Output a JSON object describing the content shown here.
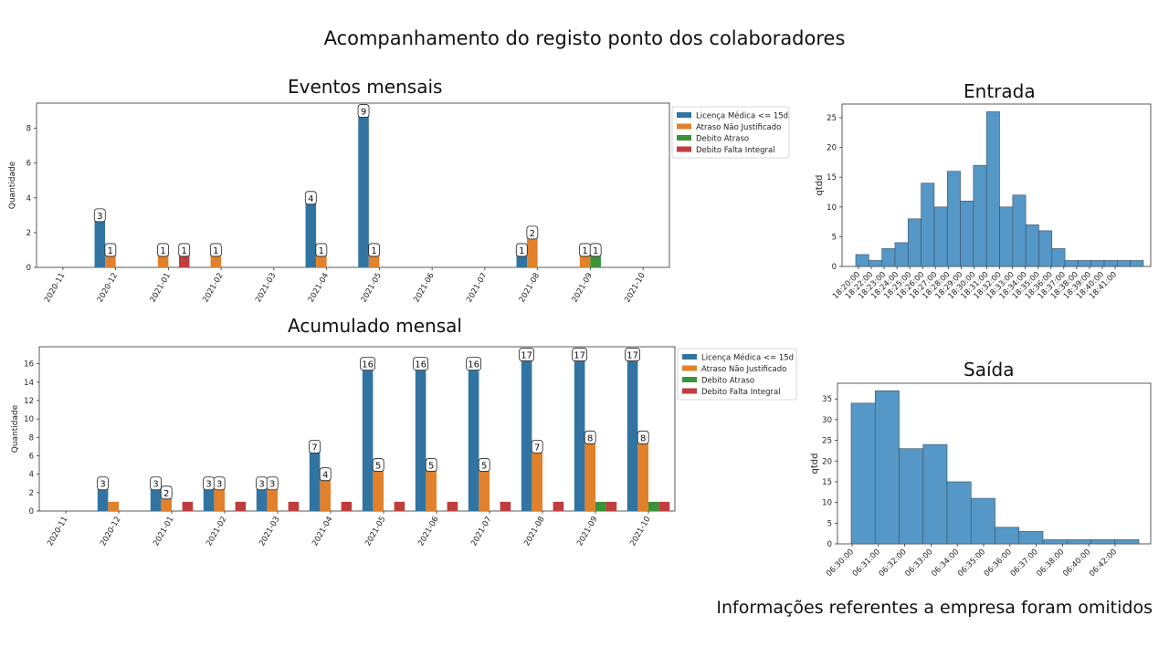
{
  "page": {
    "title": "Acompanhamento do registo ponto dos colaboradores",
    "footnote": "Informações referentes a empresa foram omitidos"
  },
  "colors": {
    "Licença Médica <= 15d": "#3274a1",
    "Atraso Não Justificado": "#e1812c",
    "Debito Atraso": "#3a923a",
    "Debito Falta Integral": "#c03d3e",
    "histogram": "#5597c6"
  },
  "chart_data": [
    {
      "id": "eventos",
      "type": "bar",
      "title": "Eventos mensais",
      "xlabel": "",
      "ylabel": "Quantidade",
      "ylim": [
        0,
        9.45
      ],
      "yticks": [
        0,
        2,
        4,
        6,
        8
      ],
      "legend_position": "top-right",
      "categories": [
        "2020-11",
        "2020-12",
        "2021-01",
        "2021-02",
        "2021-03",
        "2021-04",
        "2021-05",
        "2021-06",
        "2021-07",
        "2021-08",
        "2021-09",
        "2021-10"
      ],
      "series": [
        {
          "name": "Licença Médica <= 15d",
          "values": [
            0,
            3,
            0,
            0,
            0,
            4,
            9,
            0,
            0,
            1,
            0,
            0
          ]
        },
        {
          "name": "Atraso Não Justificado",
          "values": [
            0,
            1,
            1,
            1,
            0,
            1,
            1,
            0,
            0,
            2,
            1,
            0
          ]
        },
        {
          "name": "Debito Atraso",
          "values": [
            0,
            0,
            0,
            0,
            0,
            0,
            0,
            0,
            0,
            0,
            1,
            0
          ]
        },
        {
          "name": "Debito Falta Integral",
          "values": [
            0,
            0,
            1,
            0,
            0,
            0,
            0,
            0,
            0,
            0,
            0,
            0
          ]
        }
      ],
      "data_labels": [
        {
          "category": "2020-12",
          "series": 0,
          "text": "3"
        },
        {
          "category": "2020-12",
          "series": 1,
          "text": "1"
        },
        {
          "category": "2021-01",
          "series": 1,
          "text": "1"
        },
        {
          "category": "2021-01",
          "series": 3,
          "text": "1"
        },
        {
          "category": "2021-02",
          "series": 1,
          "text": "1"
        },
        {
          "category": "2021-04",
          "series": 0,
          "text": "4"
        },
        {
          "category": "2021-04",
          "series": 1,
          "text": "1"
        },
        {
          "category": "2021-05",
          "series": 0,
          "text": "9"
        },
        {
          "category": "2021-05",
          "series": 1,
          "text": "1"
        },
        {
          "category": "2021-08",
          "series": 0,
          "text": "1"
        },
        {
          "category": "2021-08",
          "series": 1,
          "text": "2"
        },
        {
          "category": "2021-09",
          "series": 1,
          "text": "1"
        },
        {
          "category": "2021-09",
          "series": 2,
          "text": "1"
        }
      ]
    },
    {
      "id": "acumulado",
      "type": "bar",
      "title": "Acumulado mensal",
      "xlabel": "",
      "ylabel": "Quantidade",
      "ylim": [
        0,
        17.85
      ],
      "yticks": [
        0,
        2,
        4,
        6,
        8,
        10,
        12,
        14,
        16
      ],
      "legend_position": "top-right",
      "categories": [
        "2020-11",
        "2020-12",
        "2021-01",
        "2021-02",
        "2021-03",
        "2021-04",
        "2021-05",
        "2021-06",
        "2021-07",
        "2021-08",
        "2021-09",
        "2021-10"
      ],
      "series": [
        {
          "name": "Licença Médica <= 15d",
          "values": [
            0,
            3,
            3,
            3,
            3,
            7,
            16,
            16,
            16,
            17,
            17,
            17
          ]
        },
        {
          "name": "Atraso Não Justificado",
          "values": [
            0,
            1,
            2,
            3,
            3,
            4,
            5,
            5,
            5,
            7,
            8,
            8
          ]
        },
        {
          "name": "Debito Atraso",
          "values": [
            0,
            0,
            0,
            0,
            0,
            0,
            0,
            0,
            0,
            0,
            1,
            1
          ]
        },
        {
          "name": "Debito Falta Integral",
          "values": [
            0,
            0,
            1,
            1,
            1,
            1,
            1,
            1,
            1,
            1,
            1,
            1
          ]
        }
      ],
      "data_labels": [
        {
          "category": "2020-12",
          "series": 0,
          "text": "3"
        },
        {
          "category": "2021-01",
          "series": 0,
          "text": "3"
        },
        {
          "category": "2021-01",
          "series": 1,
          "text": "2"
        },
        {
          "category": "2021-02",
          "series": 0,
          "text": "3"
        },
        {
          "category": "2021-02",
          "series": 1,
          "text": "3"
        },
        {
          "category": "2021-03",
          "series": 0,
          "text": "3"
        },
        {
          "category": "2021-03",
          "series": 1,
          "text": "3"
        },
        {
          "category": "2021-04",
          "series": 0,
          "text": "7"
        },
        {
          "category": "2021-04",
          "series": 1,
          "text": "4"
        },
        {
          "category": "2021-05",
          "series": 0,
          "text": "16"
        },
        {
          "category": "2021-05",
          "series": 1,
          "text": "5"
        },
        {
          "category": "2021-06",
          "series": 0,
          "text": "16"
        },
        {
          "category": "2021-06",
          "series": 1,
          "text": "5"
        },
        {
          "category": "2021-07",
          "series": 0,
          "text": "16"
        },
        {
          "category": "2021-07",
          "series": 1,
          "text": "5"
        },
        {
          "category": "2021-08",
          "series": 0,
          "text": "17"
        },
        {
          "category": "2021-08",
          "series": 1,
          "text": "7"
        },
        {
          "category": "2021-09",
          "series": 0,
          "text": "17"
        },
        {
          "category": "2021-09",
          "series": 1,
          "text": "8"
        },
        {
          "category": "2021-10",
          "series": 0,
          "text": "17"
        },
        {
          "category": "2021-10",
          "series": 1,
          "text": "8"
        }
      ]
    },
    {
      "id": "entrada",
      "type": "histogram",
      "title": "Entrada",
      "xlabel": "",
      "ylabel": "qtdd",
      "ylim": [
        0,
        27.3
      ],
      "yticks": [
        0,
        5,
        10,
        15,
        20,
        25
      ],
      "tick_labels": [
        "18:20:00",
        "18:22:00",
        "18:23:00",
        "18:24:00",
        "18:25:00",
        "18:26:00",
        "18:27:00",
        "18:28:00",
        "18:29:00",
        "18:30:00",
        "18:31:00",
        "18:32:00",
        "18:33:00",
        "18:34:00",
        "18:35:00",
        "18:36:00",
        "18:37:00",
        "18:38:00",
        "18:39:00",
        "18:40:00",
        "18:41:00"
      ],
      "values": [
        2,
        1,
        3,
        4,
        8,
        14,
        10,
        16,
        11,
        17,
        26,
        10,
        12,
        7,
        6,
        3,
        1,
        1,
        1,
        1,
        1,
        1
      ]
    },
    {
      "id": "saida",
      "type": "histogram",
      "title": "Saída",
      "xlabel": "",
      "ylabel": "qtdd",
      "ylim": [
        0,
        38.8
      ],
      "yticks": [
        0,
        5,
        10,
        15,
        20,
        25,
        30,
        35
      ],
      "tick_labels": [
        "06:30:00",
        "06:31:00",
        "06:32:00",
        "06:33:00",
        "06:34:00",
        "06:35:00",
        "06:36:00",
        "06:37:00",
        "06:38:00",
        "06:40:00",
        "06:42:00"
      ],
      "values": [
        34,
        37,
        23,
        24,
        15,
        11,
        4,
        3,
        1,
        1,
        1,
        1
      ]
    }
  ]
}
